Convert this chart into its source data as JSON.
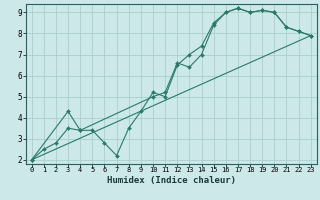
{
  "xlabel": "Humidex (Indice chaleur)",
  "ylabel": "",
  "xlim": [
    -0.5,
    23.5
  ],
  "ylim": [
    1.8,
    9.4
  ],
  "background_color": "#cce8e8",
  "grid_color": "#aacece",
  "line_color": "#2a7a6a",
  "series": [
    {
      "x": [
        0,
        1,
        2,
        3,
        4,
        5,
        6,
        7,
        8,
        9,
        10,
        11,
        12,
        13,
        14,
        15,
        16,
        17,
        18,
        19,
        20,
        21,
        22,
        23
      ],
      "y": [
        2.0,
        2.5,
        2.8,
        3.5,
        3.4,
        3.4,
        2.8,
        2.2,
        3.5,
        4.3,
        5.2,
        5.0,
        6.5,
        7.0,
        7.4,
        8.5,
        9.0,
        9.2,
        9.0,
        9.1,
        9.0,
        8.3,
        8.1,
        7.9
      ]
    },
    {
      "x": [
        0,
        3,
        4,
        10,
        11,
        12,
        13,
        14,
        15,
        16,
        17,
        18,
        19,
        20,
        21,
        22,
        23
      ],
      "y": [
        2.0,
        4.3,
        3.4,
        5.0,
        5.2,
        6.6,
        6.4,
        7.0,
        8.4,
        9.0,
        9.2,
        9.0,
        9.1,
        9.0,
        8.3,
        8.1,
        7.9
      ]
    },
    {
      "x": [
        0,
        23
      ],
      "y": [
        2.0,
        7.9
      ]
    }
  ]
}
